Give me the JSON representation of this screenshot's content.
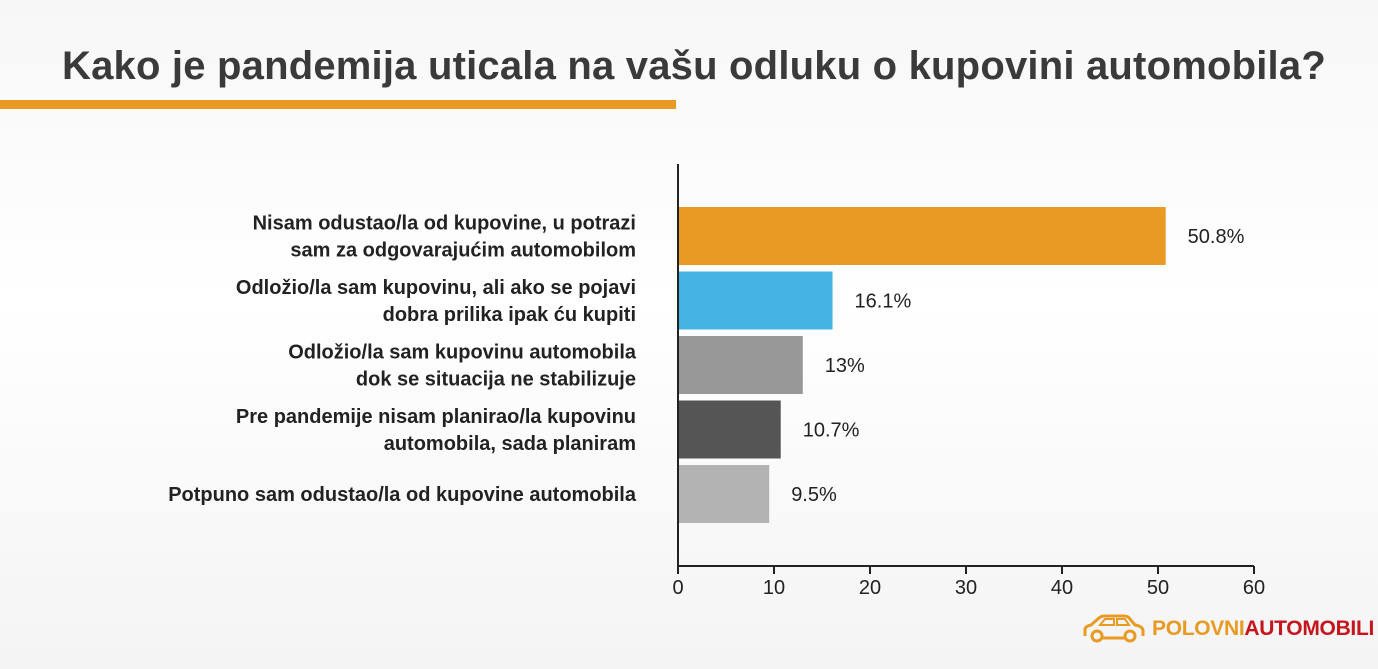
{
  "title": "Kako je pandemija uticala na vašu odluku o kupovini automobila?",
  "colors": {
    "accent": "#e89a23",
    "axis": "#222222"
  },
  "logo": {
    "icon": "car-outline-icon",
    "part1": "POLOVNI",
    "part2": "AUTOMOBILI"
  },
  "chart_data": {
    "type": "bar",
    "orientation": "horizontal",
    "categories": [
      [
        "Nisam odustao/la od kupovine, u potrazi",
        "sam za odgovarajućim automobilom"
      ],
      [
        "Odložio/la sam kupovinu, ali ako se pojavi",
        "dobra prilika ipak ću kupiti"
      ],
      [
        "Odložio/la sam kupovinu automobila",
        "dok se situacija ne stabilizuje"
      ],
      [
        "Pre pandemije nisam planirao/la kupovinu",
        "automobila, sada planiram"
      ],
      [
        "Potpuno sam odustao/la od kupovine automobila"
      ]
    ],
    "values": [
      50.8,
      16.1,
      13,
      10.7,
      9.5
    ],
    "value_labels": [
      "50.8%",
      "16.1%",
      "13%",
      "10.7%",
      "9.5%"
    ],
    "bar_colors": [
      "#e89a23",
      "#45b3e3",
      "#989898",
      "#555555",
      "#b3b3b3"
    ],
    "xlim": [
      0,
      60
    ],
    "xticks": [
      0,
      10,
      20,
      30,
      40,
      50,
      60
    ],
    "grid": false,
    "legend": "none"
  }
}
